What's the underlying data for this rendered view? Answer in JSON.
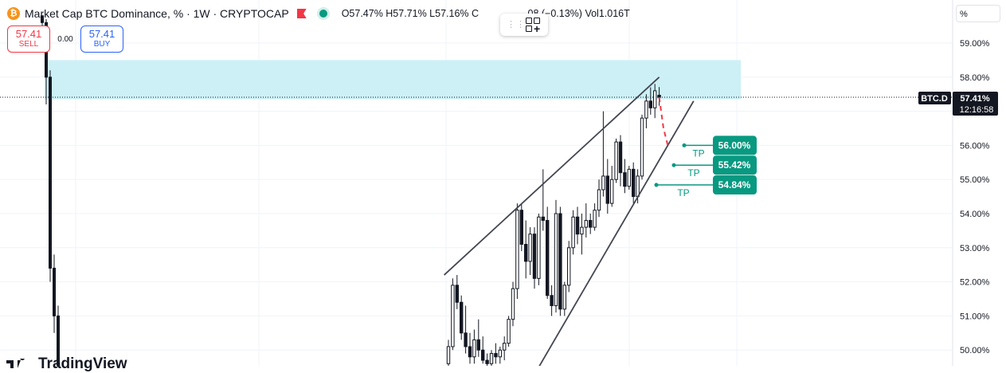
{
  "header": {
    "coin_icon": "bitcoin-icon",
    "title": "Market Cap BTC Dominance, % · 1W · CRYPTOCAP",
    "ohlc": "O57.47% H57.71% L57.16% C",
    "change": ".08 (−0.13%)",
    "volume": "Vol1.016T"
  },
  "trade": {
    "sell_price": "57.41",
    "sell_label": "SELL",
    "spread": "0.00",
    "buy_price": "57.41",
    "buy_label": "BUY"
  },
  "scale_mode": "%",
  "branding": "TradingView",
  "colors": {
    "up": "#089981",
    "down": "#f23645",
    "zone": "#c6eef5",
    "accent": "#2962ff"
  },
  "chart_data": {
    "type": "candlestick",
    "y_axis": {
      "ticks": [
        "59.00%",
        "58.00%",
        "57.00%",
        "56.00%",
        "55.00%",
        "54.00%",
        "53.00%",
        "52.00%",
        "51.00%",
        "50.00%"
      ],
      "range": [
        49.5,
        59.8
      ]
    },
    "price_tag": {
      "symbol": "BTC.D",
      "value": "57.41%",
      "countdown": "12:16:58"
    },
    "last_price": 57.41,
    "zone": {
      "from": 57.35,
      "to": 58.5
    },
    "take_profits": [
      {
        "label": "TP",
        "value": "56.00%",
        "price": 56.0
      },
      {
        "label": "TP",
        "value": "55.42%",
        "price": 55.42
      },
      {
        "label": "TP",
        "value": "54.84%",
        "price": 54.84
      }
    ],
    "left_bars": [
      [
        59.8,
        59.8,
        59.5,
        59.6
      ],
      [
        59.6,
        59.7,
        57.2,
        58.0
      ],
      [
        58.0,
        58.2,
        52.0,
        52.4
      ],
      [
        52.4,
        52.8,
        50.5,
        51.0
      ],
      [
        51.0,
        51.3,
        49.5,
        49.5
      ]
    ],
    "bars": [
      [
        49.6,
        50.3,
        49.5,
        50.1
      ],
      [
        50.1,
        52.1,
        50.0,
        51.9
      ],
      [
        51.9,
        52.2,
        51.2,
        51.4
      ],
      [
        51.4,
        51.6,
        50.3,
        50.5
      ],
      [
        50.5,
        51.3,
        49.9,
        50.1
      ],
      [
        50.1,
        50.5,
        49.6,
        49.8
      ],
      [
        49.8,
        50.6,
        49.6,
        50.3
      ],
      [
        50.3,
        50.9,
        49.8,
        50.0
      ],
      [
        50.0,
        50.4,
        49.6,
        49.7
      ],
      [
        49.7,
        49.9,
        49.5,
        49.6
      ],
      [
        49.6,
        50.0,
        49.5,
        49.9
      ],
      [
        49.9,
        50.2,
        49.6,
        49.8
      ],
      [
        49.8,
        50.1,
        49.6,
        50.0
      ],
      [
        50.0,
        50.4,
        49.7,
        50.2
      ],
      [
        50.2,
        51.0,
        50.1,
        50.9
      ],
      [
        50.9,
        52.0,
        50.7,
        51.8
      ],
      [
        51.8,
        54.3,
        51.5,
        54.1
      ],
      [
        54.1,
        54.3,
        52.9,
        53.1
      ],
      [
        53.1,
        53.8,
        52.1,
        52.6
      ],
      [
        52.6,
        53.6,
        52.2,
        53.4
      ],
      [
        53.4,
        53.6,
        51.8,
        52.1
      ],
      [
        52.1,
        54.0,
        51.9,
        53.9
      ],
      [
        53.9,
        55.3,
        53.5,
        53.8
      ],
      [
        53.8,
        54.2,
        51.5,
        51.6
      ],
      [
        51.6,
        51.9,
        51.0,
        51.3
      ],
      [
        51.3,
        54.4,
        51.1,
        54.0
      ],
      [
        54.0,
        54.2,
        51.0,
        51.2
      ],
      [
        51.2,
        52.0,
        51.0,
        51.9
      ],
      [
        51.9,
        53.2,
        51.7,
        53.0
      ],
      [
        53.0,
        54.1,
        52.8,
        53.9
      ],
      [
        53.9,
        54.2,
        53.1,
        53.4
      ],
      [
        53.4,
        54.0,
        52.8,
        53.6
      ],
      [
        53.6,
        54.3,
        53.3,
        53.8
      ],
      [
        53.8,
        54.0,
        53.4,
        53.6
      ],
      [
        53.6,
        54.3,
        53.5,
        54.1
      ],
      [
        54.1,
        55.0,
        53.9,
        54.7
      ],
      [
        54.7,
        57.0,
        54.5,
        55.1
      ],
      [
        55.1,
        55.6,
        54.0,
        54.3
      ],
      [
        54.3,
        55.4,
        54.2,
        55.0
      ],
      [
        55.0,
        56.2,
        54.9,
        56.1
      ],
      [
        56.1,
        56.3,
        54.8,
        55.2
      ],
      [
        55.2,
        55.6,
        54.6,
        54.8
      ],
      [
        54.8,
        55.4,
        54.7,
        55.3
      ],
      [
        55.3,
        55.5,
        54.3,
        54.5
      ],
      [
        54.5,
        55.3,
        54.3,
        55.1
      ],
      [
        55.1,
        56.9,
        55.0,
        56.8
      ],
      [
        56.8,
        57.5,
        56.5,
        57.3
      ],
      [
        57.3,
        57.7,
        56.9,
        57.1
      ],
      [
        57.1,
        57.8,
        56.8,
        57.6
      ],
      [
        57.47,
        57.71,
        57.16,
        57.41
      ]
    ],
    "channel_upper": {
      "from": {
        "bar": -1,
        "price": 52.2
      },
      "to": {
        "bar": 49,
        "price": 58.0
      }
    },
    "channel_lower": {
      "from": {
        "bar": 21,
        "price": 49.5
      },
      "to": {
        "bar": 57,
        "price": 57.3
      }
    },
    "projection": [
      [
        49,
        57.41
      ],
      [
        50,
        56.5
      ],
      [
        51,
        56.0
      ]
    ]
  }
}
